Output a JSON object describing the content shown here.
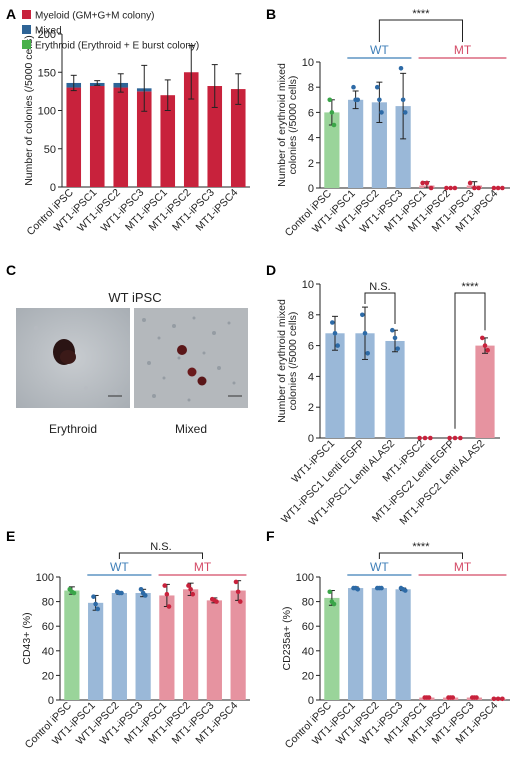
{
  "panels": {
    "A": "A",
    "B": "B",
    "C": "C",
    "D": "D",
    "E": "E",
    "F": "F"
  },
  "colors": {
    "myeloid": "#c8223c",
    "mixed": "#2e6496",
    "erythroid": "#48b04a",
    "control": "#9ad49a",
    "wt": "#9ab8d8",
    "mt": "#e693a0",
    "wt_line": "#3f7fb8",
    "mt_line": "#d44a66",
    "dot_wt": "#2d6aa6",
    "dot_mt": "#c8223c",
    "dot_ctrl": "#3aa548"
  },
  "photos": {
    "title": "WT iPSC",
    "left_caption": "Erythroid",
    "right_caption": "Mixed"
  },
  "chart_data": [
    {
      "panel": "A",
      "type": "bar",
      "stacked": true,
      "categories": [
        "Control iPSC",
        "WT1-iPSC1",
        "WT1-iPSC2",
        "WT1-iPSC3",
        "MT1-iPSC1",
        "MT1-iPSC2",
        "MT1-iPSC3",
        "MT1-iPSC4"
      ],
      "series": [
        {
          "name": "Myeloid (GM+G+M colony)",
          "values": [
            130,
            132,
            130,
            125,
            120,
            150,
            132,
            128
          ]
        },
        {
          "name": "Mixed",
          "values": [
            6,
            4,
            6,
            4,
            0,
            0,
            0,
            0
          ]
        },
        {
          "name": "Erythroid (Erythroid + E burst colony)",
          "values": [
            0,
            0,
            0,
            0,
            0,
            0,
            0,
            0
          ]
        }
      ],
      "errors": [
        10,
        3,
        12,
        30,
        20,
        35,
        28,
        20
      ],
      "ylabel": "Number of colonies (/5000 cells)",
      "ylim": [
        0,
        200
      ],
      "yticks": [
        0,
        50,
        100,
        150,
        200
      ],
      "legend": "top-left"
    },
    {
      "panel": "B",
      "type": "bar",
      "categories": [
        "Control iPSC",
        "WT1-iPSC1",
        "WT1-iPSC2",
        "WT1-iPSC3",
        "MT1-iPSC1",
        "MT1-iPSC2",
        "MT1-iPSC3",
        "MT1-iPSC4"
      ],
      "values": [
        6.0,
        7.0,
        6.8,
        6.5,
        0.2,
        0.0,
        0.2,
        0.0
      ],
      "errors": [
        1.0,
        0.7,
        1.6,
        2.6,
        0.3,
        0.0,
        0.3,
        0.0
      ],
      "points": [
        [
          7,
          6,
          5
        ],
        [
          8,
          7,
          7
        ],
        [
          8,
          7,
          6
        ],
        [
          9.5,
          7,
          6
        ],
        [
          0.4,
          0.4,
          0
        ],
        [
          0,
          0,
          0
        ],
        [
          0.4,
          0,
          0
        ],
        [
          0,
          0,
          0
        ]
      ],
      "groups": [
        "ctrl",
        "wt",
        "wt",
        "wt",
        "mt",
        "mt",
        "mt",
        "mt"
      ],
      "ylabel": "Number of erythroid mixed colonies (/5000 cells)",
      "ylim": [
        0,
        10
      ],
      "yticks": [
        0,
        2,
        4,
        6,
        8,
        10
      ],
      "significance": "****",
      "group_labels": {
        "wt": "WT",
        "mt": "MT"
      }
    },
    {
      "panel": "D",
      "type": "bar",
      "categories": [
        "WT1-iPSC1",
        "WT1-iPSC1 Lenti EGFP",
        "WT1-iPSC1 Lenti ALAS2",
        "MT1-iPSC2",
        "MT1-iPSC2 Lenti EGFP",
        "MT1-iPSC2 Lenti ALAS2"
      ],
      "values": [
        6.8,
        6.8,
        6.3,
        0.0,
        0.0,
        6.0
      ],
      "errors": [
        1.1,
        1.7,
        0.7,
        0,
        0,
        0.5
      ],
      "points": [
        [
          7.5,
          6.8,
          6
        ],
        [
          8,
          6.8,
          5.5
        ],
        [
          7,
          6.5,
          5.8
        ],
        [
          0,
          0,
          0
        ],
        [
          0,
          0,
          0
        ],
        [
          6.5,
          6,
          5.7
        ]
      ],
      "groups": [
        "wt",
        "wt",
        "wt",
        "mt",
        "mt",
        "mt"
      ],
      "ylabel": "Number of erythroid mixed colonies (/5000 cells)",
      "ylim": [
        0,
        10
      ],
      "yticks": [
        0,
        2,
        4,
        6,
        8,
        10
      ],
      "significance_left": "N.S.",
      "significance_right": "****"
    },
    {
      "panel": "E",
      "type": "bar",
      "categories": [
        "Control iPSC",
        "WT1-iPSC1",
        "WT1-iPSC2",
        "WT1-iPSC3",
        "MT1-iPSC1",
        "MT1-iPSC2",
        "MT1-iPSC3",
        "MT1-iPSC4"
      ],
      "values": [
        89,
        79,
        87,
        87,
        85,
        90,
        81,
        89
      ],
      "errors": [
        3,
        6,
        1,
        3,
        9,
        5,
        2,
        8
      ],
      "points": [
        [
          90,
          88,
          87
        ],
        [
          84,
          78,
          74
        ],
        [
          88,
          87,
          87
        ],
        [
          90,
          87,
          85
        ],
        [
          93,
          86,
          76
        ],
        [
          93,
          90,
          86
        ],
        [
          82,
          81,
          80
        ],
        [
          96,
          88,
          80
        ]
      ],
      "groups": [
        "ctrl",
        "wt",
        "wt",
        "wt",
        "mt",
        "mt",
        "mt",
        "mt"
      ],
      "ylabel": "CD43+ (%)",
      "ylim": [
        0,
        100
      ],
      "yticks": [
        0,
        20,
        40,
        60,
        80,
        100
      ],
      "significance": "N.S.",
      "group_labels": {
        "wt": "WT",
        "mt": "MT"
      }
    },
    {
      "panel": "F",
      "type": "bar",
      "categories": [
        "Control iPSC",
        "WT1-iPSC1",
        "WT1-iPSC2",
        "WT1-iPSC3",
        "MT1-iPSC1",
        "MT1-iPSC2",
        "MT1-iPSC3",
        "MT1-iPSC4"
      ],
      "values": [
        83,
        91,
        91,
        90,
        2,
        2,
        2,
        1
      ],
      "errors": [
        6,
        1,
        1,
        1,
        0.5,
        0.5,
        0.5,
        0.5
      ],
      "points": [
        [
          88,
          80,
          78
        ],
        [
          91,
          91,
          90
        ],
        [
          91,
          91,
          91
        ],
        [
          91,
          90,
          89
        ],
        [
          2,
          2,
          2
        ],
        [
          2,
          2,
          2
        ],
        [
          2,
          2,
          2
        ],
        [
          1,
          1,
          1
        ]
      ],
      "groups": [
        "ctrl",
        "wt",
        "wt",
        "wt",
        "mt",
        "mt",
        "mt",
        "mt"
      ],
      "ylabel": "CD235a+ (%)",
      "ylim": [
        0,
        100
      ],
      "yticks": [
        0,
        20,
        40,
        60,
        80,
        100
      ],
      "significance": "****",
      "group_labels": {
        "wt": "WT",
        "mt": "MT"
      }
    }
  ]
}
